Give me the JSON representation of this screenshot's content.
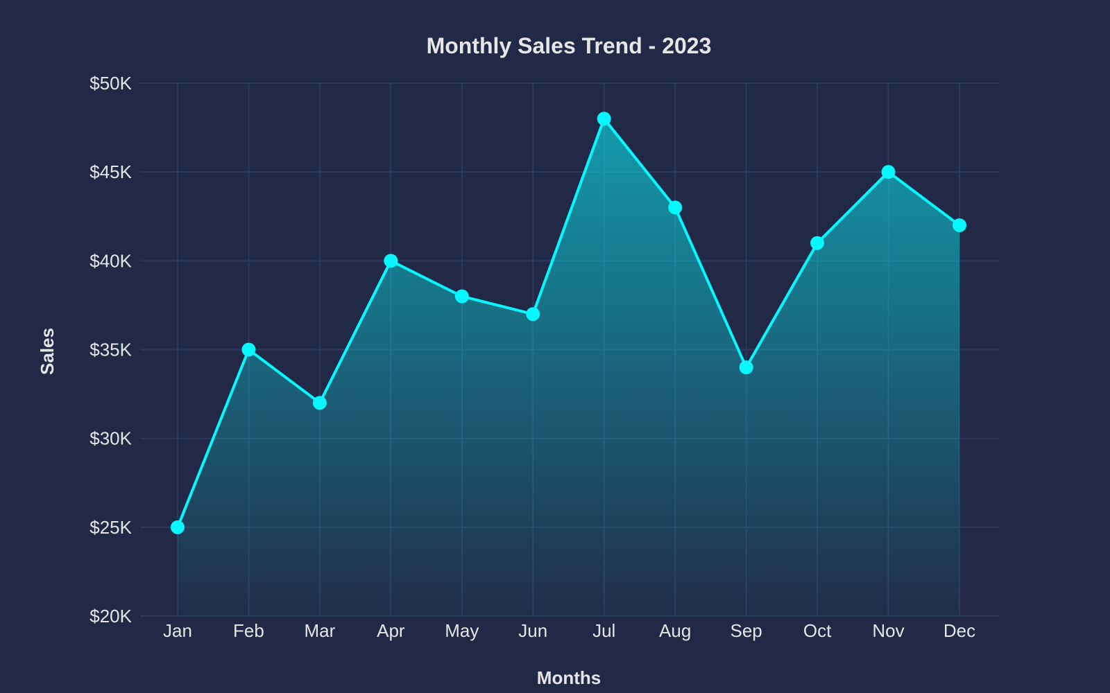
{
  "chart_data": {
    "type": "area",
    "title": "Monthly Sales Trend - 2023",
    "xlabel": "Months",
    "ylabel": "Sales",
    "categories": [
      "Jan",
      "Feb",
      "Mar",
      "Apr",
      "May",
      "Jun",
      "Jul",
      "Aug",
      "Sep",
      "Oct",
      "Nov",
      "Dec"
    ],
    "values": [
      25000,
      35000,
      32000,
      40000,
      38000,
      37000,
      48000,
      43000,
      34000,
      41000,
      45000,
      42000
    ],
    "ylim": [
      20000,
      50000
    ],
    "yticks": [
      20000,
      25000,
      30000,
      35000,
      40000,
      45000,
      50000
    ],
    "ytick_labels": [
      "$20K",
      "$25K",
      "$30K",
      "$35K",
      "$40K",
      "$45K",
      "$50K"
    ],
    "grid": true,
    "legend": "none",
    "colors": {
      "background": "#212946",
      "line": "#08F7FE",
      "grid": "#2b3a5e",
      "text": "#e6e6e6"
    }
  }
}
